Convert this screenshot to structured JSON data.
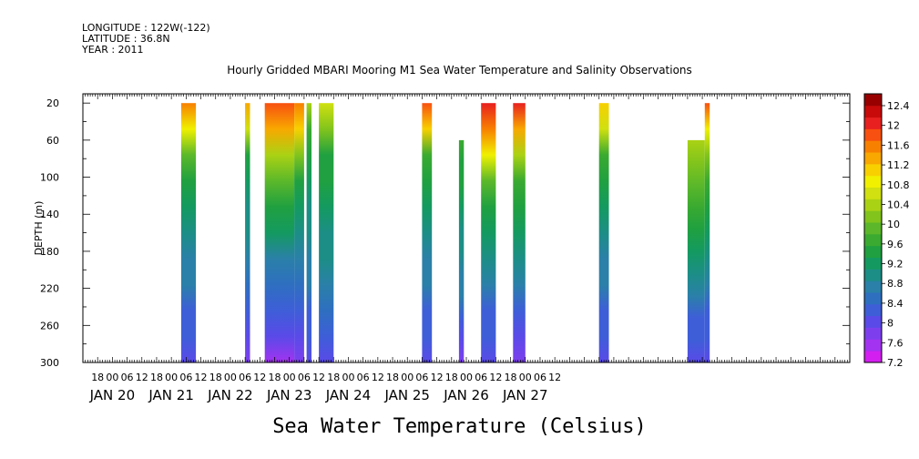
{
  "header": {
    "longitude": "LONGITUDE : 122W(-122)",
    "latitude": "LATITUDE : 36.8N",
    "year": "YEAR : 2011"
  },
  "chart_data": {
    "type": "heatmap",
    "title": "Hourly Gridded MBARI Mooring M1 Sea Water Temperature and Salinity Observations",
    "subtitle": "Sea Water Temperature (Celsius)",
    "ylabel": "DEPTH (m)",
    "xlabel": "",
    "y_reversed": true,
    "ylim": [
      300,
      10
    ],
    "y_ticks": [
      20,
      60,
      100,
      140,
      180,
      220,
      260,
      300
    ],
    "x_range_hours": [
      -12,
      300
    ],
    "x_hour_ticks": [
      18,
      "00",
      "06",
      12,
      18,
      "00",
      "06",
      12,
      18,
      "00",
      "06",
      12,
      18,
      "00",
      "06",
      12,
      18,
      "00",
      "06",
      12,
      18,
      "00",
      "06",
      12,
      18,
      "00",
      "06",
      12,
      18,
      "00",
      "06",
      12
    ],
    "x_date_labels": [
      "JAN 20",
      "JAN 21",
      "JAN 22",
      "JAN 23",
      "JAN 24",
      "JAN 25",
      "JAN 26",
      "JAN 27"
    ],
    "colorbar": {
      "levels": [
        7.2,
        7.6,
        8,
        8.4,
        8.8,
        9.2,
        9.6,
        10,
        10.4,
        10.8,
        11.2,
        11.6,
        12,
        12.4
      ],
      "colors": [
        "#d31ff0",
        "#a333f0",
        "#7d3fee",
        "#5a4ae8",
        "#3e5ed8",
        "#2e6fc0",
        "#2a80a8",
        "#1c8e86",
        "#149a60",
        "#20a040",
        "#3aaa30",
        "#5cb82a",
        "#82c41c",
        "#aad214",
        "#d0e010",
        "#f0f000",
        "#f8d000",
        "#f8a800",
        "#f88000",
        "#f85010",
        "#e82020",
        "#c80a0a",
        "#980000"
      ],
      "band_labels": [
        "12.4",
        "12",
        "11.6",
        "11.2",
        "10.8",
        "10.4",
        "10",
        "9.6",
        "9.2",
        "8.8",
        "8.4",
        "8",
        "7.6",
        "7.2"
      ]
    },
    "data_blocks": [
      {
        "x_hours": [
          28,
          34
        ],
        "depth_top": 20,
        "depth_bottom": 300,
        "temps": [
          11.6,
          10.8,
          9.8,
          9.3,
          9.1,
          8.9,
          8.7,
          8.5,
          8.2,
          8.0,
          7.8
        ]
      },
      {
        "x_hours": [
          54,
          56
        ],
        "depth_top": 20,
        "depth_bottom": 300,
        "temps": [
          11.2,
          10.6,
          9.4,
          9.0,
          8.9,
          8.8,
          8.6,
          8.4,
          8.1,
          7.9,
          7.7
        ]
      },
      {
        "x_hours": [
          62,
          74
        ],
        "depth_top": 20,
        "depth_bottom": 300,
        "temps": [
          11.8,
          11.2,
          10.4,
          9.8,
          9.4,
          9.0,
          8.7,
          8.4,
          8.1,
          7.8,
          7.4
        ]
      },
      {
        "x_hours": [
          74,
          78
        ],
        "depth_top": 20,
        "depth_bottom": 300,
        "temps": [
          11.6,
          10.9,
          10.0,
          9.4,
          9.1,
          8.8,
          8.6,
          8.4,
          8.1,
          7.9,
          7.7
        ]
      },
      {
        "x_hours": [
          79,
          81
        ],
        "depth_top": 20,
        "depth_bottom": 300,
        "temps": [
          10.3,
          9.6,
          9.2,
          9.0,
          8.9,
          8.8,
          8.7,
          8.5,
          8.2,
          8.0,
          7.8
        ]
      },
      {
        "x_hours": [
          84,
          90
        ],
        "depth_top": 20,
        "depth_bottom": 300,
        "temps": [
          10.6,
          10.0,
          9.4,
          9.2,
          9.0,
          8.9,
          8.8,
          8.6,
          8.3,
          8.0,
          7.8
        ]
      },
      {
        "x_hours": [
          126,
          130
        ],
        "depth_top": 20,
        "depth_bottom": 300,
        "temps": [
          11.8,
          11.0,
          9.6,
          9.2,
          9.0,
          8.9,
          8.7,
          8.5,
          8.2,
          8.0,
          7.8
        ]
      },
      {
        "x_hours": [
          141,
          143
        ],
        "depth_top": 60,
        "depth_bottom": 300,
        "temps": [
          9.6,
          9.4,
          9.2,
          9.0,
          8.9,
          8.8,
          8.7,
          8.5,
          8.2,
          7.9,
          7.6
        ]
      },
      {
        "x_hours": [
          150,
          156
        ],
        "depth_top": 20,
        "depth_bottom": 300,
        "temps": [
          12.0,
          11.6,
          10.8,
          9.8,
          9.3,
          9.0,
          8.8,
          8.5,
          8.2,
          8.0,
          7.8
        ]
      },
      {
        "x_hours": [
          163,
          168
        ],
        "depth_top": 20,
        "depth_bottom": 300,
        "temps": [
          11.9,
          11.2,
          10.2,
          9.5,
          9.2,
          9.0,
          8.8,
          8.5,
          8.2,
          7.9,
          7.7
        ]
      },
      {
        "x_hours": [
          198,
          202
        ],
        "depth_top": 20,
        "depth_bottom": 300,
        "temps": [
          11.1,
          10.6,
          9.6,
          9.2,
          9.0,
          8.9,
          8.7,
          8.5,
          8.2,
          8.0,
          7.8
        ]
      },
      {
        "x_hours": [
          234,
          241
        ],
        "depth_top": 60,
        "depth_bottom": 300,
        "temps": [
          10.2,
          10.0,
          9.8,
          9.6,
          9.4,
          9.1,
          8.8,
          8.5,
          8.2,
          8.0,
          7.8
        ]
      },
      {
        "x_hours": [
          241,
          243
        ],
        "depth_top": 20,
        "depth_bottom": 300,
        "temps": [
          11.7,
          10.8,
          10.0,
          9.6,
          9.3,
          9.0,
          8.8,
          8.5,
          8.2,
          8.0,
          7.8
        ]
      }
    ]
  }
}
